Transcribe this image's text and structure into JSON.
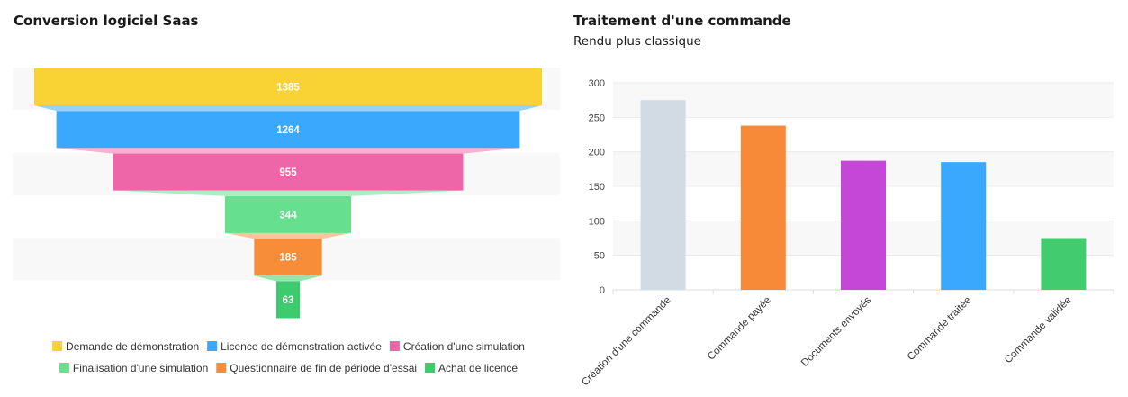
{
  "chart_data": [
    {
      "type": "funnel",
      "title": "Conversion logiciel Saas",
      "categories": [
        "Demande de démonstration",
        "Licence de démonstration activée",
        "Création d'une simulation",
        "Finalisation d'une simulation",
        "Questionnaire de fin de période d'essai",
        "Achat de licence"
      ],
      "values": [
        1385,
        1264,
        955,
        344,
        185,
        63
      ],
      "colors": [
        "#f9d334",
        "#3aa8fc",
        "#ee66a8",
        "#66e08f",
        "#f78c39",
        "#3ecb6d"
      ],
      "legend": "bottom"
    },
    {
      "type": "bar",
      "title": "Traitement d'une commande",
      "subtitle": "Rendu plus classique",
      "categories": [
        "Création d'une commande",
        "Commande payée",
        "Documents envoyés",
        "Commande traitée",
        "Commande validée"
      ],
      "values": [
        275,
        238,
        187,
        185,
        75
      ],
      "colors": [
        "#d2dae4",
        "#f78a39",
        "#c547d8",
        "#3aa8fc",
        "#43cb6f"
      ],
      "ylim": [
        0,
        300
      ],
      "yticks": [
        0,
        50,
        100,
        150,
        200,
        250,
        300
      ],
      "grid": true
    }
  ]
}
